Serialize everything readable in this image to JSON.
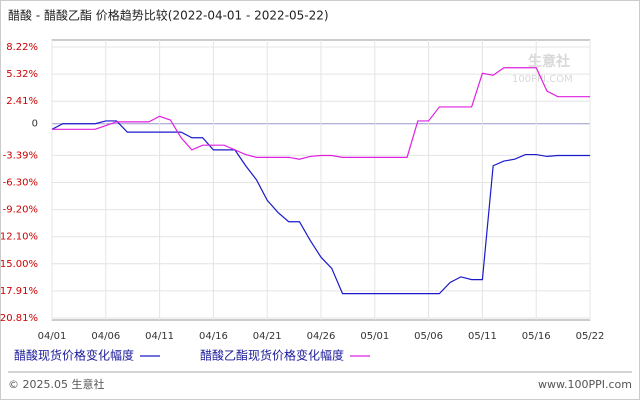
{
  "chart_data": {
    "type": "line",
    "title": "醋酸 - 醋酸乙酯 价格趋势比较(2022-04-01 - 2022-05-22)",
    "watermark": [
      "生意社",
      "100PPI.COM"
    ],
    "footer": {
      "left": "© 2025.05 生意社",
      "right": "www.100PPI.com"
    },
    "categories": [
      "04/01",
      null,
      null,
      null,
      null,
      "04/06",
      null,
      null,
      null,
      null,
      "04/11",
      null,
      null,
      null,
      null,
      "04/16",
      null,
      null,
      null,
      null,
      "04/21",
      null,
      null,
      null,
      null,
      "04/26",
      null,
      null,
      null,
      null,
      "05/01",
      null,
      null,
      null,
      null,
      "05/06",
      null,
      null,
      null,
      null,
      "05/11",
      null,
      null,
      null,
      null,
      "05/16",
      null,
      null,
      null,
      null,
      "05/22"
    ],
    "ylim": [
      -20.81,
      8.22
    ],
    "yticks": [
      {
        "value": 8.22,
        "label": "8.22%"
      },
      {
        "value": 5.32,
        "label": "5.32%"
      },
      {
        "value": 2.41,
        "label": "2.41%"
      },
      0,
      {
        "value": -3.39,
        "label": "-3.39%"
      },
      {
        "value": -6.3,
        "label": "-6.30%"
      },
      {
        "value": -9.2,
        "label": "-9.20%"
      },
      {
        "value": -12.1,
        "label": "-12.10%"
      },
      {
        "value": -15.0,
        "label": "-15.00%"
      },
      {
        "value": -17.91,
        "label": "-17.91%"
      },
      {
        "value": -20.81,
        "label": "-20.81%"
      }
    ],
    "grid": true,
    "series": [
      {
        "name": "醋酸现货价格变化幅度",
        "color": "#1a1acc",
        "values": [
          -0.6,
          0,
          0,
          0,
          0,
          0.3,
          0.3,
          -0.9,
          -0.9,
          -0.9,
          -0.9,
          -0.9,
          -0.9,
          -1.5,
          -1.5,
          -2.8,
          -2.8,
          -2.8,
          -4.5,
          -6,
          -8.2,
          -9.5,
          -10.5,
          -10.5,
          -12.5,
          -14.3,
          -15.5,
          -18.2,
          -18.2,
          -18.2,
          -18.2,
          -18.2,
          -18.2,
          -18.2,
          -18.2,
          -18.2,
          -18.2,
          -17,
          -16.4,
          -16.7,
          -16.7,
          -4.5,
          -4,
          -3.8,
          -3.3,
          -3.3,
          -3.5,
          -3.4,
          -3.4,
          -3.4,
          -3.4
        ]
      },
      {
        "name": "醋酸乙酯现货价格变化幅度",
        "color": "#e020e0",
        "values": [
          -0.6,
          -0.6,
          -0.6,
          -0.6,
          -0.6,
          -0.2,
          0.2,
          0.2,
          0.2,
          0.2,
          0.8,
          0.4,
          -1.5,
          -2.8,
          -2.3,
          -2.3,
          -2.3,
          -2.8,
          -3.3,
          -3.6,
          -3.6,
          -3.6,
          -3.6,
          -3.8,
          -3.5,
          -3.4,
          -3.4,
          -3.6,
          -3.6,
          -3.6,
          -3.6,
          -3.6,
          -3.6,
          -3.6,
          0.3,
          0.3,
          1.8,
          1.8,
          1.8,
          1.8,
          5.4,
          5.2,
          6.0,
          6.0,
          6.0,
          6.0,
          3.5,
          2.9,
          2.9,
          2.9,
          2.9
        ]
      }
    ]
  }
}
